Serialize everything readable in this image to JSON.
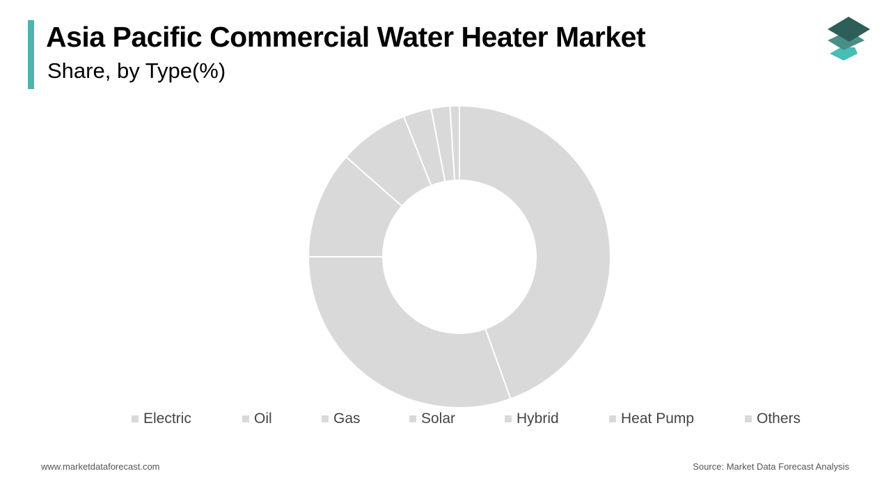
{
  "header": {
    "title": "Asia Pacific Commercial Water Heater Market",
    "subtitle": "Share, by Type(%)"
  },
  "colors": {
    "accent": "#4db3ae",
    "slice": "#d9d9d9",
    "separator": "#ffffff",
    "logo_top": "#2e5e58",
    "logo_mid": "#4a8e88",
    "logo_bottom": "#46bdb5"
  },
  "logo": {
    "icon": "stacked-layers-logo-icon"
  },
  "chart_data": {
    "type": "pie",
    "variant": "donut",
    "categories": [
      "Electric",
      "Oil",
      "Gas",
      "Solar",
      "Hybrid",
      "Heat Pump",
      "Others"
    ],
    "values": [
      44.5,
      30.5,
      11.5,
      7.5,
      3,
      2,
      1
    ],
    "legend_position": "bottom",
    "start_angle_degrees": 0,
    "direction": "clockwise"
  },
  "footer": {
    "website": "www.marketdataforecast.com",
    "source": "Source: Market Data Forecast Analysis"
  }
}
